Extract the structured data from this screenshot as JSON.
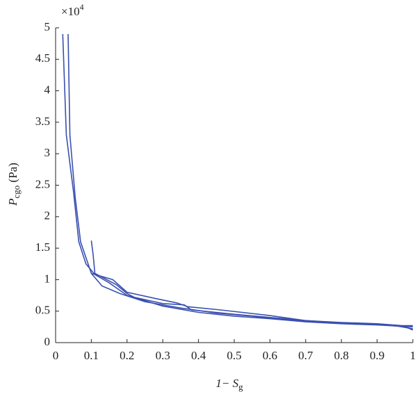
{
  "chart_data": {
    "type": "line",
    "y_multiplier": {
      "base": "×10",
      "exp": "4"
    },
    "xlabel": {
      "main": "1− S",
      "sub": "g"
    },
    "ylabel": {
      "main": "P",
      "sub": "cgo",
      "rest": " (Pa)"
    },
    "xlim": [
      0,
      1
    ],
    "xticks": [
      0,
      0.1,
      0.2,
      0.3,
      0.4,
      0.5,
      0.6,
      0.7,
      0.8,
      0.9,
      1
    ],
    "ylim": [
      0,
      5
    ],
    "yticks": [
      0,
      0.5,
      1,
      1.5,
      2,
      2.5,
      3,
      3.5,
      4,
      4.5,
      5
    ],
    "grid": false,
    "series": [
      {
        "color": "#3a4fb0",
        "x": [
          0.02,
          0.03,
          0.05,
          0.065,
          0.085,
          0.11,
          0.15,
          0.2,
          0.3,
          0.4,
          0.5,
          0.6,
          0.7,
          0.8,
          0.9,
          1.0
        ],
        "values": [
          4.9,
          3.3,
          2.4,
          1.6,
          1.25,
          1.08,
          0.95,
          0.75,
          0.58,
          0.48,
          0.42,
          0.38,
          0.33,
          0.3,
          0.28,
          0.25
        ]
      },
      {
        "color": "#3a4fb0",
        "x": [
          0.035,
          0.04,
          0.055,
          0.07,
          0.1,
          0.13,
          0.18,
          0.25,
          0.35,
          0.45,
          0.55,
          0.65,
          0.75,
          0.85,
          0.95,
          1.0
        ],
        "values": [
          4.9,
          3.3,
          2.3,
          1.6,
          1.1,
          0.9,
          0.78,
          0.65,
          0.55,
          0.47,
          0.42,
          0.36,
          0.32,
          0.3,
          0.27,
          0.22
        ]
      },
      {
        "color": "#3a4fb0",
        "x": [
          0.1,
          0.105,
          0.11,
          0.17,
          0.2,
          0.22,
          0.3,
          0.36,
          0.38,
          0.5,
          0.6,
          0.7,
          0.8,
          0.9,
          0.98,
          1.0
        ],
        "values": [
          1.62,
          1.4,
          1.1,
          0.92,
          0.78,
          0.72,
          0.62,
          0.6,
          0.52,
          0.45,
          0.4,
          0.35,
          0.31,
          0.29,
          0.25,
          0.2
        ]
      },
      {
        "color": "#3a4fb0",
        "x": [
          0.1,
          0.16,
          0.2,
          0.28,
          0.34,
          0.37,
          0.46,
          0.6,
          0.7,
          0.8,
          0.9,
          0.97,
          1.0
        ],
        "values": [
          1.1,
          1.0,
          0.8,
          0.7,
          0.63,
          0.57,
          0.52,
          0.43,
          0.35,
          0.32,
          0.3,
          0.27,
          0.27
        ]
      }
    ]
  }
}
